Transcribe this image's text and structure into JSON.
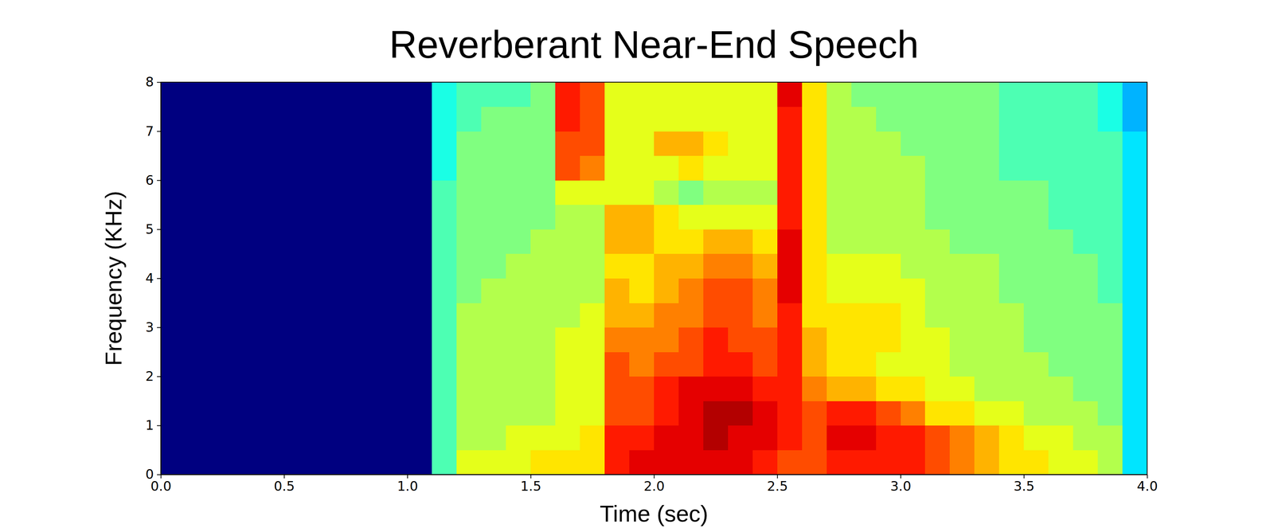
{
  "chart_data": {
    "type": "heatmap",
    "title": "Reverberant Near-End Speech",
    "x_label": "Time (sec)",
    "y_label": "Frequency (KHz)",
    "xlim": [
      0,
      4
    ],
    "ylim": [
      0,
      8
    ],
    "xticks": [
      {
        "value": 0,
        "label": "0.0"
      },
      {
        "value": 0.5,
        "label": "0.5"
      },
      {
        "value": 1,
        "label": "1.0"
      },
      {
        "value": 1.5,
        "label": "1.5"
      },
      {
        "value": 2,
        "label": "2.0"
      },
      {
        "value": 2.5,
        "label": "2.5"
      },
      {
        "value": 3,
        "label": "3.0"
      },
      {
        "value": 3.5,
        "label": "3.5"
      },
      {
        "value": 4,
        "label": "4.0"
      }
    ],
    "yticks": [
      0,
      1,
      2,
      3,
      4,
      5,
      6,
      7,
      8
    ],
    "zlim": [
      0,
      10
    ],
    "x_bins": [
      0,
      0.1,
      0.2,
      0.3,
      0.4,
      0.5,
      0.6,
      0.7,
      0.8,
      0.9,
      1,
      1.1,
      1.2,
      1.3,
      1.4,
      1.5,
      1.6,
      1.7,
      1.8,
      1.9,
      2,
      2.1,
      2.2,
      2.3,
      2.4,
      2.5,
      2.6,
      2.7,
      2.8,
      2.9,
      3,
      3.1,
      3.2,
      3.3,
      3.4,
      3.5,
      3.6,
      3.7,
      3.8,
      3.9,
      4
    ],
    "y_bins": [
      0,
      0.5,
      1,
      1.5,
      2,
      2.5,
      3,
      3.5,
      4,
      4.5,
      5,
      5.5,
      6,
      6.5,
      7,
      7.5,
      8
    ],
    "values": [
      [
        0,
        0,
        0,
        0,
        0,
        0,
        0,
        0,
        0,
        0,
        0,
        4.5,
        6,
        6,
        6,
        6.5,
        6.5,
        6.5,
        8.5,
        9,
        9,
        9,
        9,
        9,
        8.5,
        8,
        8,
        8.5,
        8.5,
        8.5,
        8.5,
        8,
        7.5,
        7,
        6.5,
        6.5,
        6,
        6,
        5.5,
        3.5
      ],
      [
        0,
        0,
        0,
        0,
        0,
        0,
        0,
        0,
        0,
        0,
        0,
        4.5,
        5.5,
        5.5,
        6,
        6,
        6,
        6.5,
        8.5,
        8.5,
        9,
        9,
        9.5,
        9,
        9,
        8.5,
        8,
        9,
        9,
        8.5,
        8.5,
        8,
        7.5,
        7,
        6.5,
        6,
        6,
        5.5,
        5.5,
        3.5
      ],
      [
        0,
        0,
        0,
        0,
        0,
        0,
        0,
        0,
        0,
        0,
        0,
        4.5,
        5.5,
        5.5,
        5.5,
        5.5,
        6,
        6,
        8,
        8,
        8.5,
        9,
        9.5,
        9.5,
        9,
        8.5,
        8,
        8.5,
        8.5,
        8,
        7.5,
        6.5,
        6.5,
        6,
        6,
        5.5,
        5.5,
        5.5,
        5,
        3.5
      ],
      [
        0,
        0,
        0,
        0,
        0,
        0,
        0,
        0,
        0,
        0,
        0,
        4.5,
        5.5,
        5.5,
        5.5,
        5.5,
        6,
        6,
        8,
        8,
        8.5,
        9,
        9,
        9,
        8.5,
        8.5,
        7.5,
        7,
        7,
        6.5,
        6.5,
        6,
        6,
        5.5,
        5.5,
        5.5,
        5.5,
        5,
        5,
        3.5
      ],
      [
        0,
        0,
        0,
        0,
        0,
        0,
        0,
        0,
        0,
        0,
        0,
        4.5,
        5.5,
        5.5,
        5.5,
        5.5,
        6,
        6,
        8,
        7.5,
        8,
        8,
        8.5,
        8.5,
        8,
        8.5,
        7,
        6.5,
        6.5,
        6,
        6,
        6,
        5.5,
        5.5,
        5.5,
        5.5,
        5,
        5,
        5,
        3.5
      ],
      [
        0,
        0,
        0,
        0,
        0,
        0,
        0,
        0,
        0,
        0,
        0,
        4.5,
        5.5,
        5.5,
        5.5,
        5.5,
        6,
        6,
        7.5,
        7.5,
        7.5,
        8,
        8.5,
        8,
        8,
        8.5,
        7,
        6.5,
        6.5,
        6.5,
        6,
        6,
        5.5,
        5.5,
        5.5,
        5,
        5,
        5,
        5,
        3.5
      ],
      [
        0,
        0,
        0,
        0,
        0,
        0,
        0,
        0,
        0,
        0,
        0,
        4.5,
        5.5,
        5.5,
        5.5,
        5.5,
        5.5,
        6,
        7,
        7,
        7.5,
        7.5,
        8,
        8,
        7.5,
        8.5,
        6.5,
        6.5,
        6.5,
        6.5,
        6,
        5.5,
        5.5,
        5.5,
        5.5,
        5,
        5,
        5,
        5,
        3.5
      ],
      [
        0,
        0,
        0,
        0,
        0,
        0,
        0,
        0,
        0,
        0,
        0,
        4.5,
        5,
        5.5,
        5.5,
        5.5,
        5.5,
        5.5,
        7,
        6.5,
        7,
        7.5,
        8,
        8,
        7.5,
        9,
        6.5,
        6,
        6,
        6,
        6,
        5.5,
        5.5,
        5.5,
        5,
        5,
        5,
        5,
        4.5,
        3.5
      ],
      [
        0,
        0,
        0,
        0,
        0,
        0,
        0,
        0,
        0,
        0,
        0,
        4.5,
        5,
        5,
        5.5,
        5.5,
        5.5,
        5.5,
        6.5,
        6.5,
        7,
        7,
        7.5,
        7.5,
        7,
        9,
        6.5,
        6,
        6,
        6,
        5.5,
        5.5,
        5.5,
        5.5,
        5,
        5,
        5,
        5,
        4.5,
        3.5
      ],
      [
        0,
        0,
        0,
        0,
        0,
        0,
        0,
        0,
        0,
        0,
        0,
        4.5,
        5,
        5,
        5,
        5.5,
        5.5,
        5.5,
        7,
        7,
        6.5,
        6.5,
        7,
        7,
        6.5,
        9,
        6.5,
        5.5,
        5.5,
        5.5,
        5.5,
        5.5,
        5,
        5,
        5,
        5,
        5,
        4.5,
        4.5,
        3.5
      ],
      [
        0,
        0,
        0,
        0,
        0,
        0,
        0,
        0,
        0,
        0,
        0,
        4.5,
        5,
        5,
        5,
        5,
        5.5,
        5.5,
        7,
        7,
        6.5,
        6,
        6,
        6,
        6,
        8.5,
        6.5,
        5.5,
        5.5,
        5.5,
        5.5,
        5,
        5,
        5,
        5,
        5,
        4.5,
        4.5,
        4.5,
        3.5
      ],
      [
        0,
        0,
        0,
        0,
        0,
        0,
        0,
        0,
        0,
        0,
        0,
        4.5,
        5,
        5,
        5,
        5,
        6,
        6,
        6,
        6,
        5.5,
        5,
        5.5,
        5.5,
        5.5,
        8.5,
        6.5,
        5.5,
        5.5,
        5.5,
        5.5,
        5,
        5,
        5,
        5,
        5,
        4.5,
        4.5,
        4.5,
        3.5
      ],
      [
        0,
        0,
        0,
        0,
        0,
        0,
        0,
        0,
        0,
        0,
        0,
        4,
        5,
        5,
        5,
        5,
        8,
        7.5,
        6,
        6,
        6,
        6.5,
        6,
        6,
        6,
        8.5,
        6.5,
        5.5,
        5.5,
        5.5,
        5.5,
        5,
        5,
        5,
        4.5,
        4.5,
        4.5,
        4.5,
        4.5,
        3.5
      ],
      [
        0,
        0,
        0,
        0,
        0,
        0,
        0,
        0,
        0,
        0,
        0,
        4,
        5,
        5,
        5,
        5,
        8,
        8,
        6,
        6,
        7,
        7,
        6.5,
        6,
        6,
        8.5,
        6.5,
        5.5,
        5.5,
        5.5,
        5,
        5,
        5,
        5,
        4.5,
        4.5,
        4.5,
        4.5,
        4.5,
        3.5
      ],
      [
        0,
        0,
        0,
        0,
        0,
        0,
        0,
        0,
        0,
        0,
        0,
        4,
        4.5,
        5,
        5,
        5,
        8.5,
        8,
        6,
        6,
        6,
        6,
        6,
        6,
        6,
        8.5,
        6.5,
        5.5,
        5.5,
        5,
        5,
        5,
        5,
        5,
        4.5,
        4.5,
        4.5,
        4.5,
        4,
        3
      ],
      [
        0,
        0,
        0,
        0,
        0,
        0,
        0,
        0,
        0,
        0,
        0,
        4,
        4.5,
        4.5,
        4.5,
        5,
        8.5,
        8,
        6,
        6,
        6,
        6,
        6,
        6,
        6,
        9,
        6.5,
        5.5,
        5,
        5,
        5,
        5,
        5,
        5,
        4.5,
        4.5,
        4.5,
        4.5,
        4,
        3
      ]
    ]
  }
}
